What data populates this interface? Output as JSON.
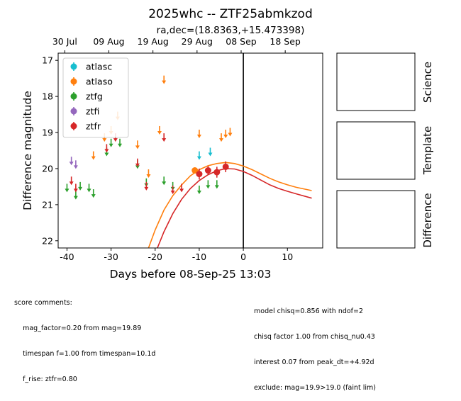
{
  "title": "2025whc -- ZTF25abmkzod",
  "subtitle": "ra,dec=(18.8363,+15.473398)",
  "panels": [
    "Science",
    "Template",
    "Difference"
  ],
  "chart_data": {
    "type": "scatter",
    "xlabel": "Days before 08-Sep-25 13:03",
    "ylabel": "Difference magnitude",
    "xlim": [
      -42,
      18
    ],
    "ylim": [
      22.2,
      16.8
    ],
    "y_inverted": true,
    "x_ticks": [
      -40,
      -30,
      -20,
      -10,
      0,
      10
    ],
    "y_ticks": [
      17,
      18,
      19,
      20,
      21,
      22
    ],
    "top_axis": {
      "ticks": [
        {
          "label": "30 Jul",
          "x": -40.5
        },
        {
          "label": "09 Aug",
          "x": -30.5
        },
        {
          "label": "19 Aug",
          "x": -20.5
        },
        {
          "label": "29 Aug",
          "x": -10.5
        },
        {
          "label": "08 Sep",
          "x": -0.5
        },
        {
          "label": "18 Sep",
          "x": 9.5
        }
      ]
    },
    "vline_x": 0,
    "legend": {
      "position": "upper-left",
      "entries": [
        {
          "name": "atlasc",
          "color": "#17becf"
        },
        {
          "name": "atlaso",
          "color": "#ff7f0e"
        },
        {
          "name": "ztfg",
          "color": "#2ca02c"
        },
        {
          "name": "ztfi",
          "color": "#9467bd"
        },
        {
          "name": "ztfr",
          "color": "#d62728"
        }
      ]
    },
    "series": [
      {
        "name": "atlasc",
        "color": "#17becf",
        "upper_limits": [
          {
            "x": -10,
            "y": 19.6
          },
          {
            "x": -7.5,
            "y": 19.5
          }
        ],
        "detections": []
      },
      {
        "name": "atlaso",
        "color": "#ff7f0e",
        "upper_limits": [
          {
            "x": -34,
            "y": 19.6
          },
          {
            "x": -31.5,
            "y": 19.1
          },
          {
            "x": -30,
            "y": 18.9
          },
          {
            "x": -28.5,
            "y": 18.5
          },
          {
            "x": -24,
            "y": 19.3
          },
          {
            "x": -21.5,
            "y": 20.1
          },
          {
            "x": -19,
            "y": 18.9
          },
          {
            "x": -18,
            "y": 17.5
          },
          {
            "x": -10,
            "y": 19.0
          },
          {
            "x": -5,
            "y": 19.1
          },
          {
            "x": -4,
            "y": 19.0
          },
          {
            "x": -3,
            "y": 18.95
          }
        ],
        "detections": [
          {
            "x": -11,
            "y": 20.05,
            "err": 0.05
          }
        ]
      },
      {
        "name": "ztfg",
        "color": "#2ca02c",
        "upper_limits": [
          {
            "x": -40,
            "y": 20.5
          },
          {
            "x": -38,
            "y": 20.7
          },
          {
            "x": -37,
            "y": 20.45
          },
          {
            "x": -35,
            "y": 20.5
          },
          {
            "x": -34,
            "y": 20.65
          },
          {
            "x": -31,
            "y": 19.5
          },
          {
            "x": -30,
            "y": 19.25
          },
          {
            "x": -28,
            "y": 19.25
          },
          {
            "x": -24,
            "y": 19.85
          },
          {
            "x": -22,
            "y": 20.35
          },
          {
            "x": -18,
            "y": 20.3
          },
          {
            "x": -16,
            "y": 20.45
          },
          {
            "x": -10,
            "y": 20.55
          },
          {
            "x": -8,
            "y": 20.4
          },
          {
            "x": -6,
            "y": 20.4
          }
        ],
        "detections": []
      },
      {
        "name": "ztfi",
        "color": "#9467bd",
        "upper_limits": [
          {
            "x": -39,
            "y": 19.75
          },
          {
            "x": -38,
            "y": 19.85
          }
        ],
        "detections": []
      },
      {
        "name": "ztfr",
        "color": "#d62728",
        "upper_limits": [
          {
            "x": -39,
            "y": 20.3
          },
          {
            "x": -38,
            "y": 20.5
          },
          {
            "x": -31,
            "y": 19.4
          },
          {
            "x": -29,
            "y": 19.1
          },
          {
            "x": -24,
            "y": 19.8
          },
          {
            "x": -22,
            "y": 20.45
          },
          {
            "x": -16,
            "y": 20.55
          },
          {
            "x": -18,
            "y": 19.1
          },
          {
            "x": -14,
            "y": 20.5
          }
        ],
        "detections": [
          {
            "x": -10,
            "y": 20.15,
            "err": 0.15
          },
          {
            "x": -8,
            "y": 20.05,
            "err": 0.12
          },
          {
            "x": -6,
            "y": 20.1,
            "err": 0.15
          },
          {
            "x": -4,
            "y": 19.95,
            "err": 0.15
          }
        ]
      }
    ],
    "model_curves": [
      {
        "name": "atlaso model",
        "color": "#ff7f0e",
        "points": [
          [
            -21.5,
            22.2
          ],
          [
            -20,
            21.7
          ],
          [
            -18,
            21.15
          ],
          [
            -16,
            20.75
          ],
          [
            -14,
            20.45
          ],
          [
            -12,
            20.2
          ],
          [
            -10,
            20.03
          ],
          [
            -8,
            19.92
          ],
          [
            -6,
            19.86
          ],
          [
            -4,
            19.83
          ],
          [
            -2,
            19.86
          ],
          [
            0,
            19.93
          ],
          [
            2,
            20.03
          ],
          [
            4,
            20.15
          ],
          [
            6,
            20.27
          ],
          [
            8,
            20.37
          ],
          [
            10,
            20.45
          ],
          [
            12,
            20.52
          ],
          [
            15.5,
            20.61
          ]
        ]
      },
      {
        "name": "ztfr model",
        "color": "#d62728",
        "points": [
          [
            -19.5,
            22.2
          ],
          [
            -18,
            21.75
          ],
          [
            -16,
            21.25
          ],
          [
            -14,
            20.85
          ],
          [
            -12,
            20.55
          ],
          [
            -10,
            20.33
          ],
          [
            -8,
            20.17
          ],
          [
            -6,
            20.06
          ],
          [
            -4,
            20.0
          ],
          [
            -2,
            20.01
          ],
          [
            0,
            20.08
          ],
          [
            2,
            20.19
          ],
          [
            4,
            20.32
          ],
          [
            6,
            20.45
          ],
          [
            8,
            20.55
          ],
          [
            10,
            20.63
          ],
          [
            12,
            20.7
          ],
          [
            15.5,
            20.82
          ]
        ]
      }
    ]
  },
  "notes_left": [
    "score comments:",
    "    mag_factor=0.20 from mag=19.89",
    "    timespan f=1.00 from timespan=10.1d",
    "    f_rise: ztfr=0.80"
  ],
  "notes_right": [
    "model chisq=0.856 with ndof=2",
    "chisq factor 1.00 from chisq_nu0.43",
    "interest 0.07 from peak_dt=+4.92d",
    "exclude: mag=19.9>19.0 (faint lim)"
  ]
}
